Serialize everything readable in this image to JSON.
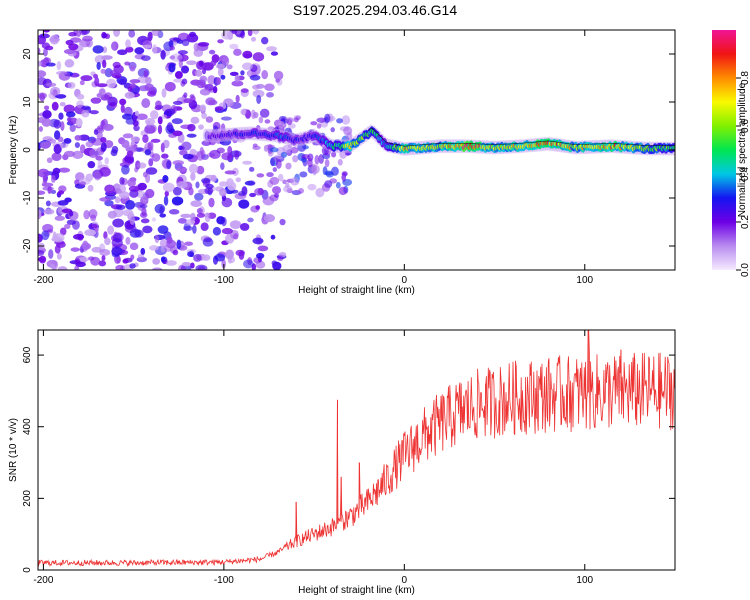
{
  "title": "S197.2025.294.03.46.G14",
  "chart_data": [
    {
      "type": "heatmap",
      "title": "S197.2025.294.03.46.G14",
      "xlabel": "Height of straight line (km)",
      "ylabel": "Frequency (Hz)",
      "xlim": [
        -203,
        150
      ],
      "ylim": [
        -25,
        25
      ],
      "xticks": [
        -200,
        -100,
        0,
        100
      ],
      "yticks": [
        -20,
        -10,
        0,
        10,
        20
      ],
      "colorbar": {
        "label": "Normalized spectral amplitude",
        "range": [
          0,
          1
        ],
        "ticks": [
          0.0,
          0.2,
          0.4,
          0.6,
          0.8
        ],
        "tick_labels": [
          "0.0",
          "0.2",
          "0.4",
          "0.6",
          "0.8"
        ]
      },
      "ridge": {
        "description_points": [
          {
            "x": -105,
            "freq": 3,
            "amp": 0.25
          },
          {
            "x": -85,
            "freq": 3.5,
            "amp": 0.3
          },
          {
            "x": -70,
            "freq": 3,
            "amp": 0.35
          },
          {
            "x": -60,
            "freq": 2,
            "amp": 0.3
          },
          {
            "x": -50,
            "freq": 3,
            "amp": 0.3
          },
          {
            "x": -40,
            "freq": 0.8,
            "amp": 0.45
          },
          {
            "x": -30,
            "freq": 0.8,
            "amp": 0.7
          },
          {
            "x": -18,
            "freq": 4,
            "amp": 0.5
          },
          {
            "x": -10,
            "freq": 1,
            "amp": 0.4
          },
          {
            "x": 0,
            "freq": 0.2,
            "amp": 0.8
          },
          {
            "x": 20,
            "freq": 0.8,
            "amp": 0.7
          },
          {
            "x": 35,
            "freq": 0.8,
            "amp": 1.0
          },
          {
            "x": 50,
            "freq": 0.5,
            "amp": 0.7
          },
          {
            "x": 65,
            "freq": 0.8,
            "amp": 0.8
          },
          {
            "x": 80,
            "freq": 1.3,
            "amp": 0.9
          },
          {
            "x": 95,
            "freq": 0.5,
            "amp": 0.7
          },
          {
            "x": 115,
            "freq": 0.8,
            "amp": 0.85
          },
          {
            "x": 135,
            "freq": 0.3,
            "amp": 0.6
          },
          {
            "x": 150,
            "freq": 0.3,
            "amp": 0.55
          }
        ]
      },
      "noise_region": {
        "x_from": -203,
        "x_to": -75,
        "amp": 0.15
      }
    },
    {
      "type": "line",
      "xlabel": "Height of straight line (km)",
      "ylabel": "SNR (10 * v/v)",
      "xlim": [
        -203,
        150
      ],
      "ylim": [
        0,
        670
      ],
      "xticks": [
        -200,
        -100,
        0,
        100
      ],
      "yticks": [
        0,
        200,
        400,
        600
      ],
      "color": "#ee3333",
      "envelope": [
        {
          "x": -203,
          "snr": 20
        },
        {
          "x": -150,
          "snr": 20
        },
        {
          "x": -100,
          "snr": 22
        },
        {
          "x": -80,
          "snr": 30
        },
        {
          "x": -70,
          "snr": 50
        },
        {
          "x": -60,
          "snr": 80
        },
        {
          "x": -50,
          "snr": 100
        },
        {
          "x": -40,
          "snr": 120
        },
        {
          "x": -30,
          "snr": 150
        },
        {
          "x": -20,
          "snr": 190
        },
        {
          "x": -10,
          "snr": 250
        },
        {
          "x": 0,
          "snr": 320
        },
        {
          "x": 10,
          "snr": 370
        },
        {
          "x": 20,
          "snr": 410
        },
        {
          "x": 30,
          "snr": 440
        },
        {
          "x": 40,
          "snr": 460
        },
        {
          "x": 50,
          "snr": 470
        },
        {
          "x": 60,
          "snr": 480
        },
        {
          "x": 80,
          "snr": 490
        },
        {
          "x": 100,
          "snr": 495
        },
        {
          "x": 120,
          "snr": 500
        },
        {
          "x": 150,
          "snr": 500
        }
      ],
      "spikes": [
        {
          "x": -60,
          "snr": 190
        },
        {
          "x": -37,
          "snr": 475
        },
        {
          "x": -35,
          "snr": 260
        },
        {
          "x": -25,
          "snr": 300
        },
        {
          "x": 45,
          "snr": 520
        },
        {
          "x": 62,
          "snr": 570
        },
        {
          "x": 102,
          "snr": 672
        },
        {
          "x": 120,
          "snr": 615
        }
      ]
    }
  ]
}
